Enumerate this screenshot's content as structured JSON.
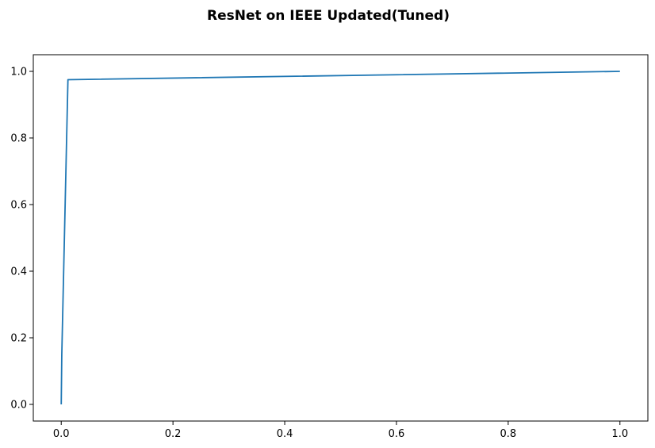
{
  "chart_data": {
    "type": "line",
    "title": "ResNet on IEEE Updated(Tuned)",
    "xlabel": "",
    "ylabel": "",
    "xlim": [
      -0.05,
      1.05
    ],
    "ylim": [
      -0.05,
      1.05
    ],
    "x_ticks": [
      0.0,
      0.2,
      0.4,
      0.6,
      0.8,
      1.0
    ],
    "y_ticks": [
      0.0,
      0.2,
      0.4,
      0.6,
      0.8,
      1.0
    ],
    "x_tick_labels": [
      "0.0",
      "0.2",
      "0.4",
      "0.6",
      "0.8",
      "1.0"
    ],
    "y_tick_labels": [
      "0.0",
      "0.2",
      "0.4",
      "0.6",
      "0.8",
      "1.0"
    ],
    "grid": false,
    "series": [
      {
        "color": "#1f77b4",
        "x": [
          0.0,
          0.001,
          0.012,
          1.0
        ],
        "y": [
          0.0,
          0.15,
          0.975,
          1.0
        ]
      }
    ]
  }
}
